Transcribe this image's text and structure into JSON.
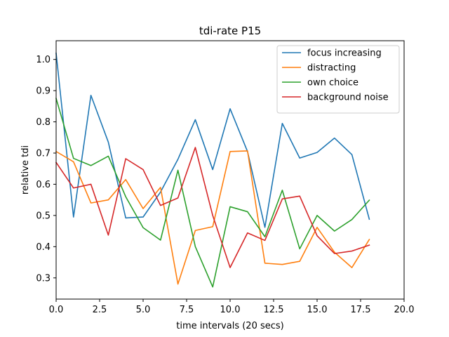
{
  "chart_data": {
    "type": "line",
    "title": "tdi-rate P15",
    "xlabel": "time intervals (20 secs)",
    "ylabel": "relative tdi",
    "xlim": [
      0,
      20
    ],
    "ylim": [
      0.232,
      1.06
    ],
    "xticks": [
      0,
      2.5,
      5,
      7.5,
      10,
      12.5,
      15,
      17.5,
      20
    ],
    "xtick_labels": [
      "0.0",
      "2.5",
      "5.0",
      "7.5",
      "10.0",
      "12.5",
      "15.0",
      "17.5",
      "20.0"
    ],
    "yticks": [
      0.3,
      0.4,
      0.5,
      0.6,
      0.7,
      0.8,
      0.9,
      1.0
    ],
    "ytick_labels": [
      "0.3",
      "0.4",
      "0.5",
      "0.6",
      "0.7",
      "0.8",
      "0.9",
      "1.0"
    ],
    "grid": false,
    "legend_position": "top-right",
    "x": [
      0,
      1,
      2,
      3,
      4,
      5,
      6,
      7,
      8,
      9,
      10,
      11,
      12,
      13,
      14,
      15,
      16,
      17,
      18
    ],
    "series": [
      {
        "name": "focus increasing",
        "color": "#1f77b4",
        "values": [
          1.02,
          0.495,
          0.885,
          0.735,
          0.492,
          0.495,
          0.575,
          0.68,
          0.807,
          0.647,
          0.842,
          0.705,
          0.462,
          0.795,
          0.684,
          0.702,
          0.748,
          0.695,
          0.488
        ]
      },
      {
        "name": "distracting",
        "color": "#ff7f0e",
        "values": [
          0.705,
          0.672,
          0.54,
          0.55,
          0.615,
          0.522,
          0.59,
          0.28,
          0.452,
          0.464,
          0.705,
          0.707,
          0.347,
          0.343,
          0.353,
          0.462,
          0.382,
          0.333,
          0.423
        ]
      },
      {
        "name": "own choice",
        "color": "#2ca02c",
        "values": [
          0.875,
          0.683,
          0.66,
          0.69,
          0.56,
          0.461,
          0.421,
          0.645,
          0.4,
          0.271,
          0.528,
          0.512,
          0.432,
          0.581,
          0.393,
          0.5,
          0.45,
          0.487,
          0.549
        ]
      },
      {
        "name": "background noise",
        "color": "#d62728",
        "values": [
          0.67,
          0.588,
          0.6,
          0.437,
          0.682,
          0.647,
          0.532,
          0.556,
          0.718,
          0.5,
          0.333,
          0.444,
          0.42,
          0.553,
          0.562,
          0.435,
          0.378,
          0.386,
          0.405
        ]
      }
    ]
  }
}
